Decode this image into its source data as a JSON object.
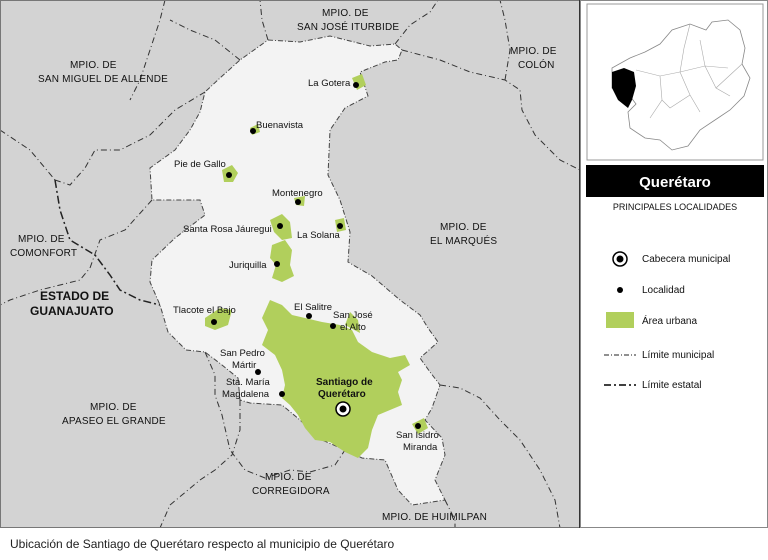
{
  "caption": "Ubicación de Santiago de Querétaro respecto al municipio de Querétaro",
  "legend": {
    "title": "Querétaro",
    "subtitle": "PRINCIPALES LOCALIDADES",
    "items": [
      {
        "label": "Cabecera municipal",
        "symbol": "seat-icon"
      },
      {
        "label": "Localidad",
        "symbol": "dot-icon"
      },
      {
        "label": "Área urbana",
        "symbol": "urban-swatch"
      },
      {
        "label": "Límite municipal",
        "symbol": "dash-dot-line"
      },
      {
        "label": "Límite estatal",
        "symbol": "dash-dot-bold-line"
      }
    ]
  },
  "neighbors": {
    "san_jose_iturbide": [
      "MPIO. DE",
      "SAN JOSÉ ITURBIDE"
    ],
    "colon": [
      "MPIO. DE",
      "COLÓN"
    ],
    "san_miguel_allende": [
      "MPIO. DE",
      "SAN MIGUEL DE ALLENDE"
    ],
    "comonfort": [
      "MPIO. DE",
      "COMONFORT"
    ],
    "el_marques": [
      "MPIO. DE",
      "EL MARQUÉS"
    ],
    "apaseo": [
      "MPIO. DE",
      "APASEO EL GRANDE"
    ],
    "corregidora": [
      "MPIO. DE",
      "CORREGIDORA"
    ],
    "huimilpan": "MPIO. DE HUIMILPAN",
    "guanajuato": [
      "ESTADO DE",
      "GUANAJUATO"
    ]
  },
  "localities": {
    "la_gotera": "La Gotera",
    "buenavista": "Buenavista",
    "pie_de_gallo": "Pie de Gallo",
    "montenegro": "Montenegro",
    "santa_rosa": "Santa Rosa Jáuregui",
    "la_solana": "La Solana",
    "juriquilla": "Juriquilla",
    "el_salitre": "El Salitre",
    "tlacote": "Tlacote el Bajo",
    "san_jose_alto": [
      "San José",
      "el Alto"
    ],
    "san_pedro": [
      "San Pedro",
      "Mártir"
    ],
    "sta_maria": [
      "Sta. María",
      "Magdalena"
    ],
    "santiago": [
      "Santiago de",
      "Querétaro"
    ],
    "san_isidro": [
      "San Isidro",
      "Miranda"
    ]
  },
  "colors": {
    "outside": "#d3d3d3",
    "municipality": "#f3f3f3",
    "urban": "#b1cf5c",
    "legend_header": "#000000"
  }
}
